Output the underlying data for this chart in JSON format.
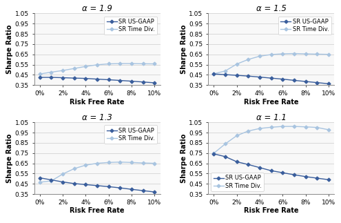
{
  "x_values": [
    0,
    1,
    2,
    3,
    4,
    5,
    6,
    7,
    8,
    9,
    10
  ],
  "x_ticks": [
    0,
    2,
    4,
    6,
    8,
    10
  ],
  "x_labels": [
    "0%",
    "2%",
    "4%",
    "6%",
    "8%",
    "10%"
  ],
  "panels": [
    {
      "title": "α = 1.9",
      "usgaap": [
        0.425,
        0.425,
        0.422,
        0.418,
        0.415,
        0.408,
        0.402,
        0.395,
        0.388,
        0.38,
        0.372
      ],
      "timediv": [
        0.458,
        0.476,
        0.492,
        0.512,
        0.532,
        0.548,
        0.557,
        0.56,
        0.56,
        0.558,
        0.557
      ],
      "legend_loc": "upper right"
    },
    {
      "title": "α = 1.5",
      "usgaap": [
        0.458,
        0.452,
        0.445,
        0.438,
        0.428,
        0.418,
        0.408,
        0.396,
        0.385,
        0.374,
        0.363
      ],
      "timediv": [
        0.46,
        0.488,
        0.555,
        0.6,
        0.632,
        0.648,
        0.655,
        0.658,
        0.655,
        0.652,
        0.65
      ],
      "legend_loc": "upper right"
    },
    {
      "title": "α = 1.3",
      "usgaap": [
        0.508,
        0.488,
        0.468,
        0.452,
        0.442,
        0.432,
        0.422,
        0.41,
        0.396,
        0.383,
        0.37
      ],
      "timediv": [
        0.465,
        0.478,
        0.545,
        0.598,
        0.632,
        0.65,
        0.658,
        0.662,
        0.658,
        0.653,
        0.65
      ],
      "legend_loc": "upper right"
    },
    {
      "title": "α = 1.1",
      "usgaap": [
        0.742,
        0.715,
        0.665,
        0.638,
        0.608,
        0.578,
        0.558,
        0.538,
        0.52,
        0.505,
        0.49
      ],
      "timediv": [
        0.748,
        0.84,
        0.92,
        0.965,
        0.99,
        1.002,
        1.01,
        1.01,
        1.006,
        1.0,
        0.978
      ],
      "legend_loc": "lower left"
    }
  ],
  "usgaap_color": "#3a5e9c",
  "timediv_color": "#a8c4e0",
  "marker": "D",
  "markersize": 2.5,
  "linewidth": 1.0,
  "ylabel": "Sharpe Ratio",
  "xlabel": "Risk Free Rate",
  "ylim": [
    0.35,
    1.05
  ],
  "yticks": [
    0.35,
    0.45,
    0.55,
    0.65,
    0.75,
    0.85,
    0.95,
    1.05
  ],
  "legend_labels": [
    "SR US-GAAP",
    "SR Time Div."
  ],
  "title_fontsize": 8.5,
  "label_fontsize": 7,
  "tick_fontsize": 6.5,
  "legend_fontsize": 6.0
}
